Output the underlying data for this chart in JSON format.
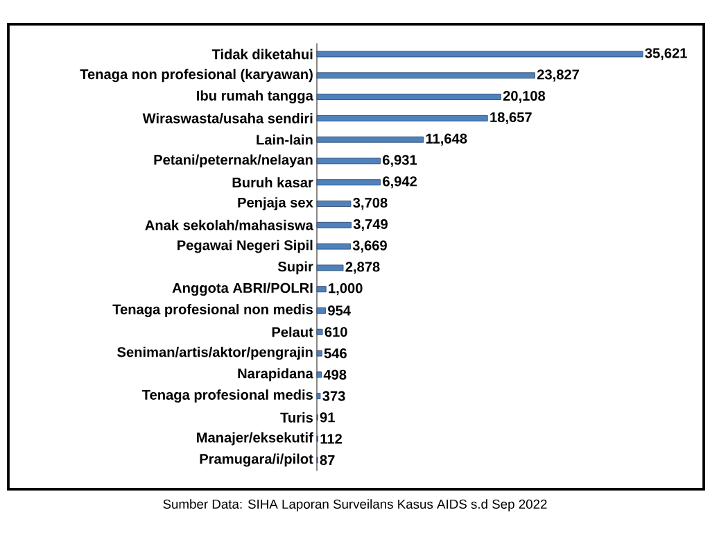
{
  "chart_data": {
    "type": "bar",
    "orientation": "horizontal",
    "color": "#4f81bd",
    "categories": [
      "Tidak diketahui",
      "Tenaga non profesional (karyawan)",
      "Ibu rumah tangga",
      "Wiraswasta/usaha sendiri",
      "Lain-lain",
      "Petani/peternak/nelayan",
      "Buruh kasar",
      "Penjaja sex",
      "Anak sekolah/mahasiswa",
      "Pegawai Negeri Sipil",
      "Supir",
      "Anggota ABRI/POLRI",
      "Tenaga profesional non medis",
      "Pelaut",
      "Seniman/artis/aktor/pengrajin",
      "Narapidana",
      "Tenaga profesional medis",
      "Turis",
      "Manajer/eksekutif",
      "Pramugara/i/pilot"
    ],
    "values": [
      35621,
      23827,
      20108,
      18657,
      11648,
      6931,
      6942,
      3708,
      3749,
      3669,
      2878,
      1000,
      954,
      610,
      546,
      498,
      373,
      91,
      112,
      87
    ],
    "value_labels": [
      "35,621",
      "23,827",
      "20,108",
      "18,657",
      "11,648",
      "6,931",
      "6,942",
      "3,708",
      "3,749",
      "3,669",
      "2,878",
      "1,000",
      "954",
      "610",
      "546",
      "498",
      "373",
      "91",
      "112",
      "87"
    ],
    "annotations": [
      "Sumber Data: SIHA Laporan Surveilans Kasus AIDS s.d Sep 2022"
    ]
  }
}
